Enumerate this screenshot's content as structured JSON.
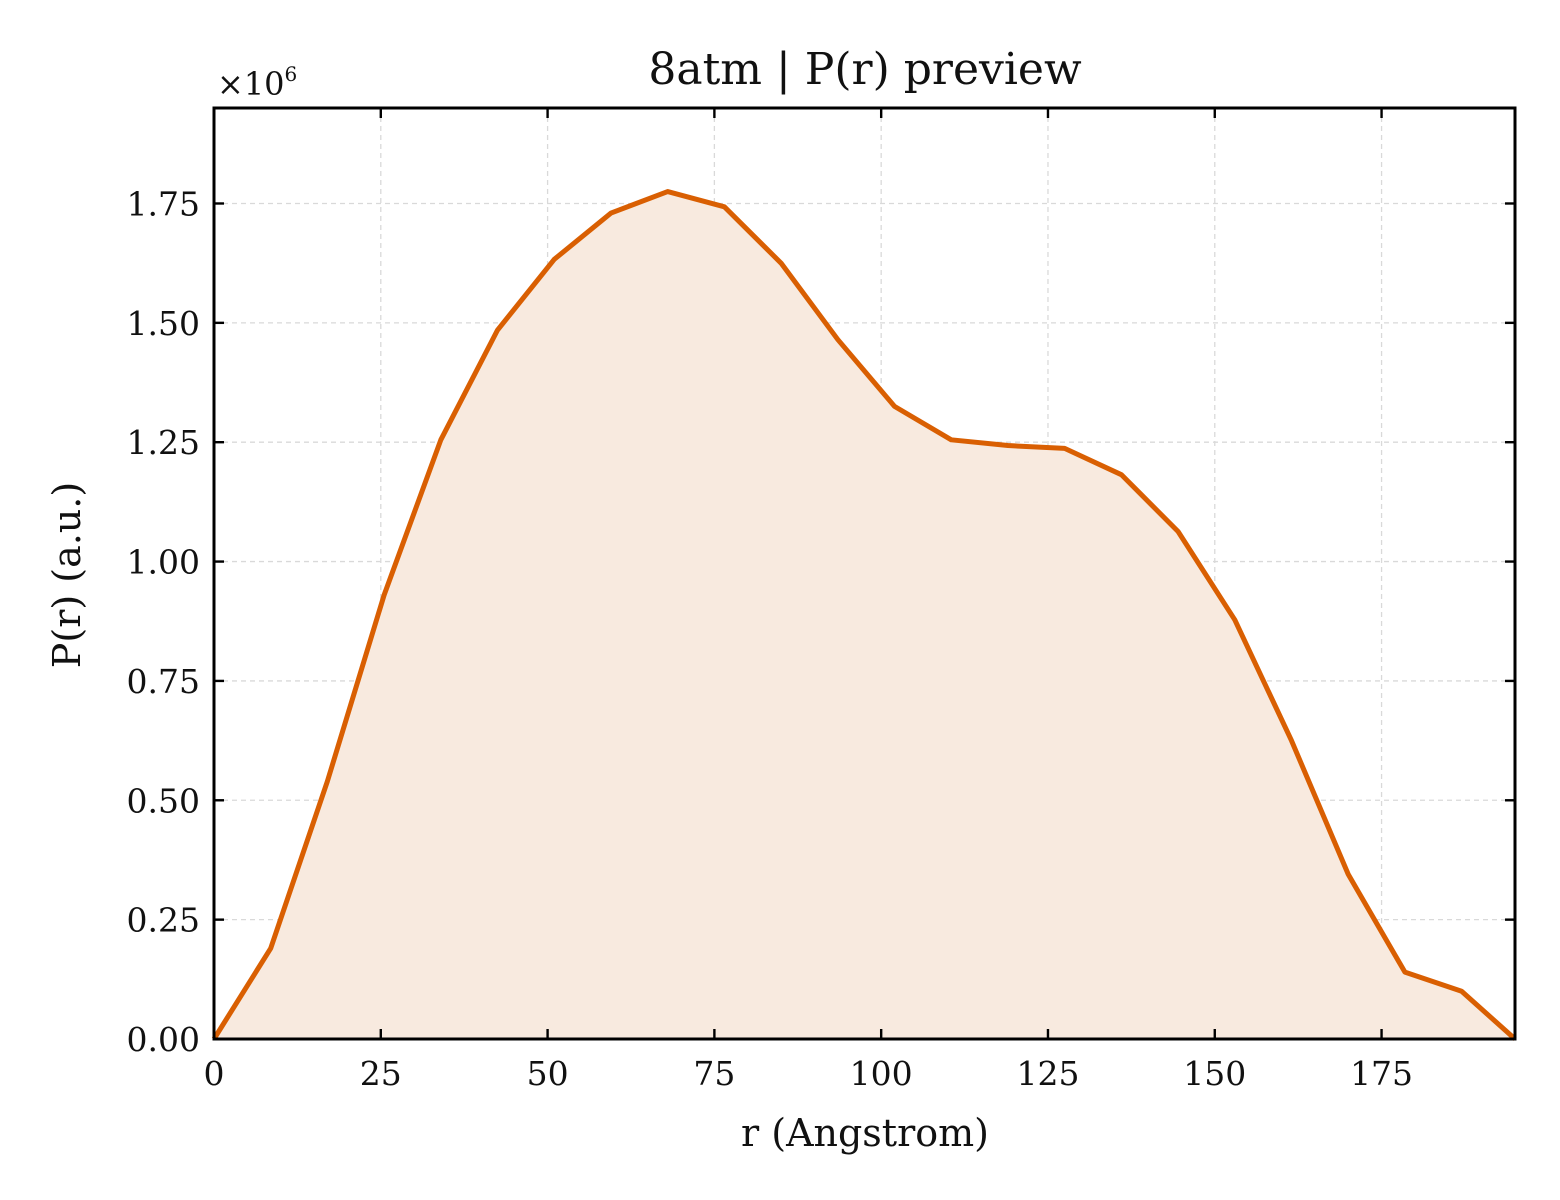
{
  "chart_data": {
    "type": "area",
    "title": "8atm | P(r) preview",
    "xlabel": "r (Angstrom)",
    "ylabel": "P(r) (a.u.)",
    "y_multiplier": {
      "base": "×10",
      "exponent": "6"
    },
    "xlim": [
      0,
      195
    ],
    "ylim": [
      0,
      1.95
    ],
    "x_ticks": [
      0,
      25,
      50,
      75,
      100,
      125,
      150,
      175
    ],
    "x_tick_labels": [
      "0",
      "25",
      "50",
      "75",
      "100",
      "125",
      "150",
      "175"
    ],
    "y_ticks": [
      0,
      0.25,
      0.5,
      0.75,
      1.0,
      1.25,
      1.5,
      1.75
    ],
    "y_tick_labels": [
      "0.00",
      "0.25",
      "0.50",
      "0.75",
      "1.00",
      "1.25",
      "1.50",
      "1.75"
    ],
    "grid": true,
    "series": [
      {
        "color": "#d95f02",
        "fill_color": "#f8eadf",
        "x": [
          0,
          8.5,
          17,
          25.5,
          34,
          42.5,
          51,
          59.5,
          68,
          76.5,
          85,
          93.5,
          102,
          110.5,
          119,
          127.5,
          136,
          144.5,
          153,
          161.5,
          170,
          178.5,
          187,
          195
        ],
        "y": [
          0.0,
          0.19,
          0.54,
          0.93,
          1.255,
          1.485,
          1.633,
          1.73,
          1.775,
          1.743,
          1.625,
          1.465,
          1.325,
          1.255,
          1.243,
          1.237,
          1.182,
          1.063,
          0.878,
          0.625,
          0.345,
          0.14,
          0.1,
          0.0
        ]
      }
    ]
  }
}
